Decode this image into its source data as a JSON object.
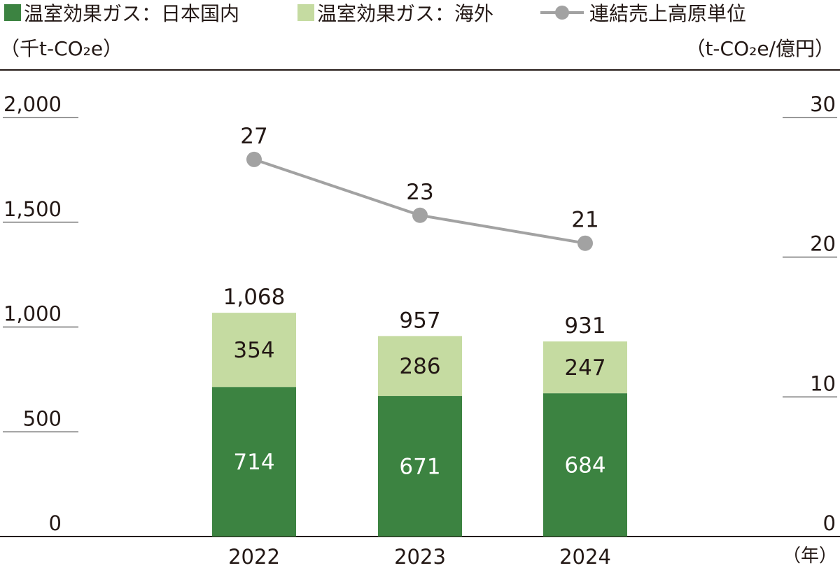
{
  "legend": {
    "domestic": "温室効果ガス：日本国内",
    "overseas": "温室効果ガス：海外",
    "intensity": "連結売上高原単位"
  },
  "units": {
    "left": "（千t-CO₂e）",
    "right": "（t-CO₂e/億円）",
    "x": "（年）"
  },
  "colors": {
    "domestic": "#3c8341",
    "overseas": "#c5dba1",
    "line": "#a2a2a2",
    "axis": "#231815",
    "grid": "#999999"
  },
  "chart_data": {
    "type": "bar",
    "stacked": true,
    "categories": [
      "2022",
      "2023",
      "2024"
    ],
    "series": [
      {
        "name": "温室効果ガス：日本国内",
        "values": [
          714,
          671,
          684
        ],
        "axis": "left"
      },
      {
        "name": "温室効果ガス：海外",
        "values": [
          354,
          286,
          247
        ],
        "axis": "left"
      },
      {
        "name": "連結売上高原単位",
        "type": "line",
        "values": [
          27,
          23,
          21
        ],
        "axis": "right"
      }
    ],
    "totals": [
      "1,068",
      "957",
      "931"
    ],
    "line_labels": [
      "27",
      "23",
      "21"
    ],
    "y_left": {
      "ticks": [
        "0",
        "500",
        "1,000",
        "1,500",
        "2,000"
      ],
      "values": [
        0,
        500,
        1000,
        1500,
        2000
      ],
      "range": [
        0,
        2000
      ]
    },
    "y_right": {
      "ticks": [
        "0",
        "10",
        "20",
        "30"
      ],
      "values": [
        0,
        10,
        20,
        30
      ],
      "range": [
        0,
        30
      ]
    },
    "legend_position": "top"
  }
}
